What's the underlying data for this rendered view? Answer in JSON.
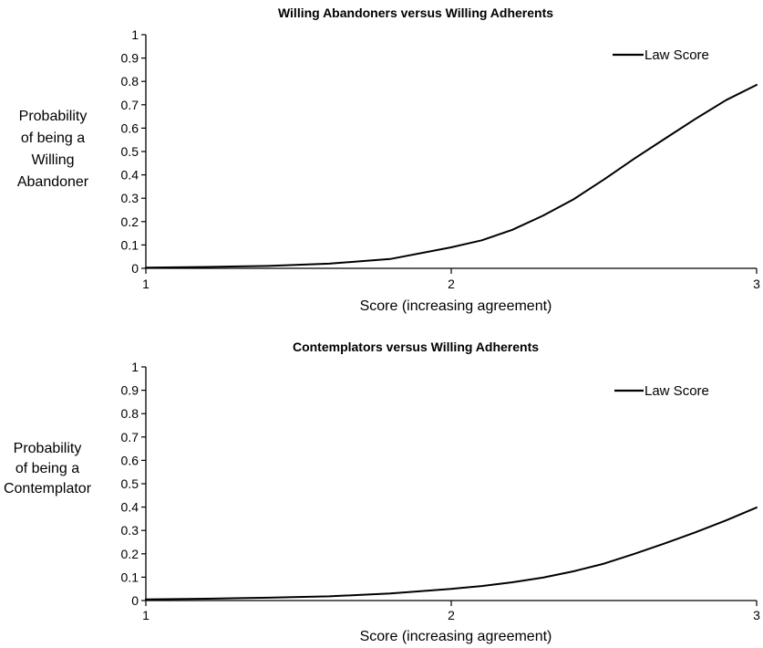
{
  "chart_data": [
    {
      "type": "line",
      "title": "Willing Abandoners versus Willing Adherents",
      "xlabel": "Score (increasing agreement)",
      "ylabel_lines": [
        "Probability",
        "of being a",
        "Willing",
        "Abandoner"
      ],
      "xlim": [
        1,
        3
      ],
      "ylim": [
        0,
        1
      ],
      "x_ticks": [
        "1",
        "2",
        "3"
      ],
      "y_ticks": [
        "0",
        "0.1",
        "0.2",
        "0.3",
        "0.4",
        "0.5",
        "0.6",
        "0.7",
        "0.8",
        "0.9",
        "1"
      ],
      "grid": false,
      "legend_position": "top-right",
      "series": [
        {
          "name": "Law Score",
          "color": "#000000",
          "x": [
            1.0,
            1.2,
            1.4,
            1.6,
            1.8,
            2.0,
            2.1,
            2.2,
            2.3,
            2.4,
            2.5,
            2.6,
            2.7,
            2.8,
            2.9,
            3.0
          ],
          "y": [
            0.003,
            0.006,
            0.01,
            0.02,
            0.04,
            0.09,
            0.12,
            0.165,
            0.225,
            0.295,
            0.38,
            0.47,
            0.555,
            0.64,
            0.72,
            0.785
          ]
        }
      ]
    },
    {
      "type": "line",
      "title": "Contemplators versus Willing Adherents",
      "xlabel": "Score (increasing agreement)",
      "ylabel_lines": [
        "Probability",
        "of being a",
        "Contemplator"
      ],
      "xlim": [
        1,
        3
      ],
      "ylim": [
        0,
        1
      ],
      "x_ticks": [
        "1",
        "2",
        "3"
      ],
      "y_ticks": [
        "0",
        "0.1",
        "0.2",
        "0.3",
        "0.4",
        "0.5",
        "0.6",
        "0.7",
        "0.8",
        "0.9",
        "1"
      ],
      "grid": false,
      "legend_position": "top-right",
      "series": [
        {
          "name": "Law Score",
          "color": "#000000",
          "x": [
            1.0,
            1.2,
            1.4,
            1.6,
            1.8,
            2.0,
            2.1,
            2.2,
            2.3,
            2.4,
            2.5,
            2.6,
            2.7,
            2.8,
            2.9,
            3.0
          ],
          "y": [
            0.005,
            0.008,
            0.012,
            0.018,
            0.03,
            0.05,
            0.062,
            0.078,
            0.098,
            0.125,
            0.158,
            0.2,
            0.245,
            0.292,
            0.343,
            0.398
          ]
        }
      ]
    }
  ]
}
